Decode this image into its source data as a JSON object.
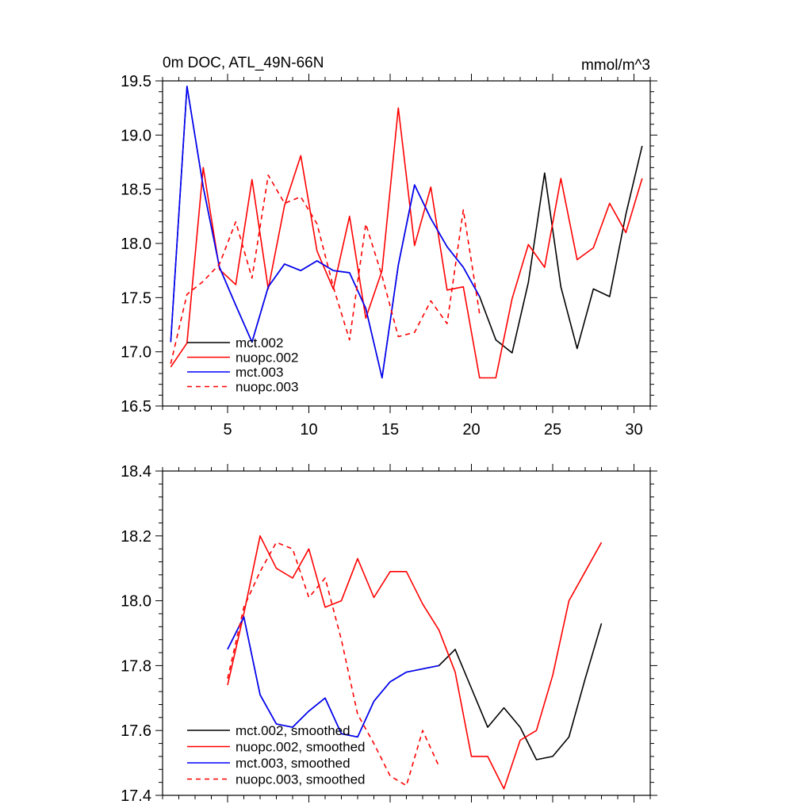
{
  "colors": {
    "mct002": "#000000",
    "nuopc002": "#ff0000",
    "mct003": "#0000ff",
    "nuopc003": "#ff0000",
    "axis": "#000000",
    "background": "#ffffff"
  },
  "chart_data": [
    {
      "type": "line",
      "title": "0m DOC, ATL_49N-66N",
      "units": "mmol/m^3",
      "xlim": [
        1.0,
        31.0
      ],
      "ylim": [
        16.5,
        19.5
      ],
      "xticks": [
        5,
        10,
        15,
        20,
        25,
        30
      ],
      "xtick_labels": [
        "5",
        "10",
        "15",
        "20",
        "25",
        "30"
      ],
      "yticks": [
        16.5,
        17.0,
        17.5,
        18.0,
        18.5,
        19.0,
        19.5
      ],
      "ytick_labels": [
        "16.5",
        "17.0",
        "17.5",
        "18.0",
        "18.5",
        "19.0",
        "19.5"
      ],
      "legend_position": "bottom-left",
      "series": [
        {
          "name": "mct.002",
          "color": "#000000",
          "dash": "solid",
          "x": [
            1.5,
            2.5,
            3.5,
            4.5,
            5.5,
            6.5,
            7.5,
            8.5,
            9.5,
            10.5,
            11.5,
            12.5,
            13.5,
            14.5,
            15.5,
            16.5,
            17.5,
            18.5,
            19.5,
            20.5,
            21.5,
            22.5,
            23.5,
            24.5,
            25.5,
            26.5,
            27.5,
            28.5,
            29.5,
            30.5
          ],
          "values": [
            17.09,
            19.45,
            18.52,
            17.78,
            17.43,
            17.09,
            17.6,
            17.81,
            17.75,
            17.84,
            17.75,
            17.73,
            17.4,
            16.76,
            17.8,
            18.54,
            18.23,
            17.97,
            17.78,
            17.51,
            17.11,
            16.99,
            17.64,
            18.65,
            17.6,
            17.03,
            17.58,
            17.51,
            18.27,
            18.9
          ]
        },
        {
          "name": "nuopc.002",
          "color": "#ff0000",
          "dash": "solid",
          "x": [
            1.5,
            2.5,
            3.5,
            4.5,
            5.5,
            6.5,
            7.5,
            8.5,
            9.5,
            10.5,
            11.5,
            12.5,
            13.5,
            14.5,
            15.5,
            16.5,
            17.5,
            18.5,
            19.5,
            20.5,
            21.5,
            22.5,
            23.5,
            24.5,
            25.5,
            26.5,
            27.5,
            28.5,
            29.5,
            30.5
          ],
          "values": [
            16.86,
            17.08,
            18.7,
            17.76,
            17.62,
            18.59,
            17.58,
            18.35,
            18.81,
            17.93,
            17.58,
            18.25,
            17.31,
            17.75,
            19.25,
            17.98,
            18.52,
            17.57,
            17.6,
            16.76,
            16.76,
            17.49,
            17.99,
            17.78,
            18.6,
            17.85,
            17.96,
            18.37,
            18.1,
            18.6
          ]
        },
        {
          "name": "mct.003",
          "color": "#0000ff",
          "dash": "solid",
          "x": [
            1.5,
            2.5,
            3.5,
            4.5,
            5.5,
            6.5,
            7.5,
            8.5,
            9.5,
            10.5,
            11.5,
            12.5,
            13.5,
            14.5,
            15.5,
            16.5,
            17.5,
            18.5,
            19.5,
            20.5
          ],
          "values": [
            17.09,
            19.45,
            18.52,
            17.78,
            17.43,
            17.09,
            17.6,
            17.81,
            17.75,
            17.84,
            17.75,
            17.73,
            17.4,
            16.76,
            17.8,
            18.54,
            18.23,
            17.97,
            17.78,
            17.51
          ]
        },
        {
          "name": "nuopc.003",
          "color": "#ff0000",
          "dash": "dashed",
          "x": [
            1.5,
            2.5,
            3.5,
            4.5,
            5.5,
            6.5,
            7.5,
            8.5,
            9.5,
            10.5,
            11.5,
            12.5,
            13.5,
            14.5,
            15.5,
            16.5,
            17.5,
            18.5,
            19.5,
            20.5
          ],
          "values": [
            16.89,
            17.53,
            17.65,
            17.81,
            18.2,
            17.68,
            18.63,
            18.37,
            18.43,
            18.18,
            17.6,
            17.11,
            18.18,
            17.7,
            17.14,
            17.18,
            17.47,
            17.26,
            18.31,
            17.35
          ]
        }
      ]
    },
    {
      "type": "line",
      "title": "",
      "units": "",
      "xlim": [
        1.0,
        31.0
      ],
      "ylim": [
        17.4,
        18.4
      ],
      "xticks": [
        5,
        10,
        15,
        20,
        25,
        30
      ],
      "yticks": [
        17.4,
        17.6,
        17.8,
        18.0,
        18.2,
        18.4
      ],
      "ytick_labels": [
        "17.4",
        "17.6",
        "17.8",
        "18.0",
        "18.2",
        "18.4"
      ],
      "legend_position": "bottom-left",
      "series": [
        {
          "name": "mct.002, smoothed",
          "color": "#000000",
          "dash": "solid",
          "x": [
            5.0,
            6.0,
            7.0,
            8.0,
            9.0,
            10.0,
            11.0,
            12.0,
            13.0,
            14.0,
            15.0,
            16.0,
            17.0,
            18.0,
            19.0,
            20.0,
            21.0,
            22.0,
            23.0,
            24.0,
            25.0,
            26.0,
            27.0,
            28.0
          ],
          "values": [
            17.85,
            17.95,
            17.71,
            17.62,
            17.61,
            17.66,
            17.7,
            17.59,
            17.58,
            17.69,
            17.75,
            17.78,
            17.79,
            17.8,
            17.85,
            17.73,
            17.61,
            17.67,
            17.61,
            17.51,
            17.52,
            17.58,
            17.76,
            17.93
          ]
        },
        {
          "name": "nuopc.002, smoothed",
          "color": "#ff0000",
          "dash": "solid",
          "x": [
            5.0,
            6.0,
            7.0,
            8.0,
            9.0,
            10.0,
            11.0,
            12.0,
            13.0,
            14.0,
            15.0,
            16.0,
            17.0,
            18.0,
            19.0,
            20.0,
            21.0,
            22.0,
            23.0,
            24.0,
            25.0,
            26.0,
            27.0,
            28.0
          ],
          "values": [
            17.74,
            17.96,
            18.2,
            18.1,
            18.07,
            18.16,
            17.98,
            18.0,
            18.13,
            18.01,
            18.09,
            18.09,
            17.99,
            17.91,
            17.78,
            17.52,
            17.52,
            17.42,
            17.57,
            17.6,
            17.77,
            18.0,
            18.09,
            18.18
          ]
        },
        {
          "name": "mct.003, smoothed",
          "color": "#0000ff",
          "dash": "solid",
          "x": [
            5.0,
            6.0,
            7.0,
            8.0,
            9.0,
            10.0,
            11.0,
            12.0,
            13.0,
            14.0,
            15.0,
            16.0,
            17.0,
            18.0
          ],
          "values": [
            17.85,
            17.95,
            17.71,
            17.62,
            17.61,
            17.66,
            17.7,
            17.59,
            17.58,
            17.69,
            17.75,
            17.78,
            17.79,
            17.8
          ]
        },
        {
          "name": "nuopc.003, smoothed",
          "color": "#ff0000",
          "dash": "dashed",
          "x": [
            5.0,
            6.0,
            7.0,
            8.0,
            9.0,
            10.0,
            11.0,
            12.0,
            13.0,
            14.0,
            15.0,
            16.0,
            17.0,
            18.0
          ],
          "values": [
            17.76,
            17.98,
            18.09,
            18.18,
            18.16,
            18.01,
            18.07,
            17.88,
            17.65,
            17.56,
            17.46,
            17.43,
            17.6,
            17.49
          ]
        }
      ]
    }
  ]
}
